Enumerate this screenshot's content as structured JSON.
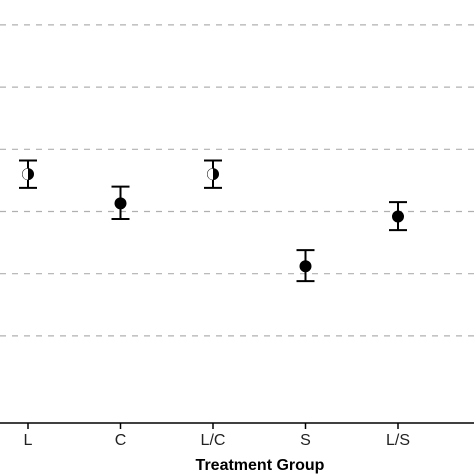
{
  "chart_data": {
    "type": "scatter",
    "subtype": "point-with-error-bars",
    "xlabel": "Treatment Group",
    "ylabel": "",
    "categories": [
      "L",
      "C",
      "L/C",
      "S",
      "L/S"
    ],
    "series": [
      {
        "values": [
          2.6,
          2.13,
          2.6,
          1.12,
          1.92
        ],
        "lower": [
          2.38,
          1.88,
          2.38,
          0.88,
          1.7
        ],
        "upper": [
          2.82,
          2.4,
          2.82,
          1.38,
          2.15
        ],
        "marker": [
          "half",
          "full",
          "half",
          "full",
          "full"
        ]
      }
    ],
    "ylim": [
      -1.4,
      5.4
    ],
    "grid_y": [
      0,
      1,
      2,
      3,
      4,
      5
    ],
    "grid": "horizontal dashed",
    "colors": {
      "gridline": "#b0b0b0",
      "marker": "#000000"
    }
  }
}
